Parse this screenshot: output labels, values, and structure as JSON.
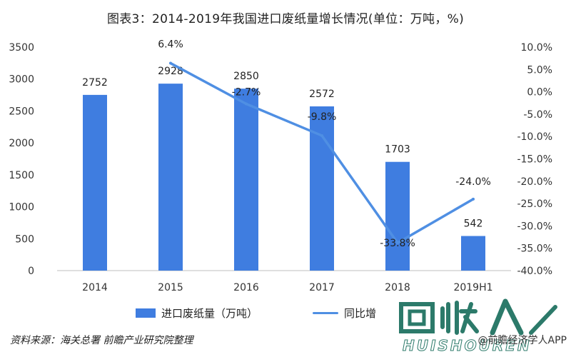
{
  "title": "图表3：2014-2019年我国进口废纸量增长情况(单位：万吨，%)",
  "legend": {
    "bar_label": "进口废纸量（万吨）",
    "line_label": "同比增"
  },
  "source": "资料来源：海关总署 前瞻产业研究院整理",
  "corner_text": "@前瞻经济学人APP",
  "logo_text": "HUISHOUREN",
  "colors": {
    "bar": "#3f7de0",
    "line": "#4f8fe3"
  },
  "chart_data": {
    "type": "bar",
    "categories": [
      "2014",
      "2015",
      "2016",
      "2017",
      "2018",
      "2019H1"
    ],
    "series": [
      {
        "name": "进口废纸量（万吨）",
        "type": "bar",
        "axis": "left",
        "values": [
          2752,
          2928,
          2850,
          2572,
          1703,
          542
        ],
        "labels": [
          "2752",
          "2928",
          "2850",
          "2572",
          "1703",
          "542"
        ]
      },
      {
        "name": "同比增",
        "type": "line",
        "axis": "right",
        "values": [
          null,
          6.4,
          -2.7,
          -9.8,
          -33.8,
          -24.0
        ],
        "labels": [
          "",
          "6.4%",
          "-2.7%",
          "-9.8%",
          "-33.8%",
          "-24.0%"
        ]
      }
    ],
    "left_axis": {
      "ylim": [
        0,
        3500
      ],
      "ticks": [
        0,
        500,
        1000,
        1500,
        2000,
        2500,
        3000,
        3500
      ],
      "tick_labels": [
        "0",
        "500",
        "1000",
        "1500",
        "2000",
        "2500",
        "3000",
        "3500"
      ]
    },
    "right_axis": {
      "ylim": [
        -40,
        10
      ],
      "ticks": [
        10,
        5,
        0,
        -5,
        -10,
        -15,
        -20,
        -25,
        -30,
        -35,
        -40
      ],
      "tick_labels": [
        "10.0%",
        "5.0%",
        "0.0%",
        "-5.0%",
        "-10.0%",
        "-15.0%",
        "-20.0%",
        "-25.0%",
        "-30.0%",
        "-35.0%",
        "-40.0%"
      ]
    },
    "grid": false,
    "legend_position": "bottom"
  }
}
